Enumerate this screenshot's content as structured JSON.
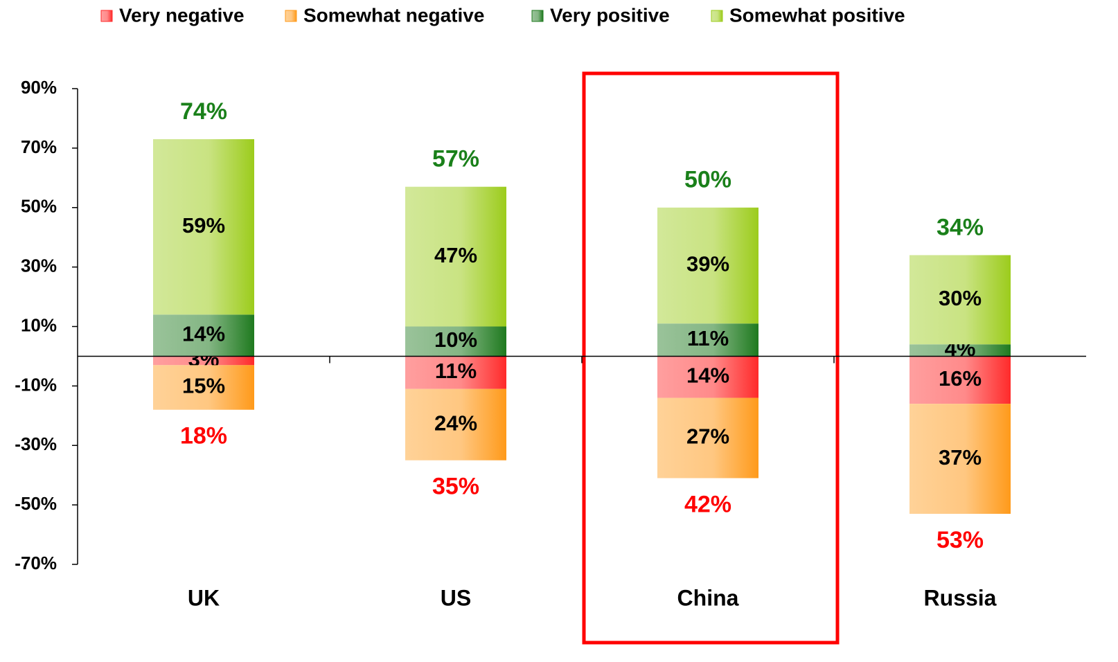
{
  "chart_data": {
    "type": "diverging_stacked_bar",
    "categories": [
      "UK",
      "US",
      "China",
      "Russia"
    ],
    "series": [
      {
        "name": "Very negative",
        "color": "#ff2a2a",
        "values": [
          -3,
          -11,
          -14,
          -16
        ],
        "value_labels": [
          "3%",
          "11%",
          "14%",
          "16%"
        ]
      },
      {
        "name": "Somewhat negative",
        "color": "#ff9a1a",
        "values": [
          -15,
          -24,
          -27,
          -37
        ],
        "value_labels": [
          "15%",
          "24%",
          "27%",
          "37%"
        ]
      },
      {
        "name": "Very positive",
        "color": "#1f7a1f",
        "values": [
          14,
          10,
          11,
          4
        ],
        "value_labels": [
          "14%",
          "10%",
          "11%",
          "4%"
        ]
      },
      {
        "name": "Somewhat positive",
        "color": "#9ccc1c",
        "values": [
          59,
          47,
          39,
          30
        ],
        "value_labels": [
          "59%",
          "47%",
          "39%",
          "30%"
        ]
      }
    ],
    "totals": {
      "positive": {
        "color": "#1a801a",
        "values": [
          74,
          57,
          50,
          34
        ],
        "value_labels": [
          "74%",
          "57%",
          "50%",
          "34%"
        ]
      },
      "negative": {
        "color": "#ff0000",
        "values": [
          -18,
          -35,
          -42,
          -53
        ],
        "value_labels": [
          "18%",
          "35%",
          "42%",
          "53%"
        ]
      }
    },
    "ylim": [
      -70,
      90
    ],
    "yticks": [
      {
        "value": 90,
        "label": "90%"
      },
      {
        "value": 70,
        "label": "70%"
      },
      {
        "value": 50,
        "label": "50%"
      },
      {
        "value": 30,
        "label": "30%"
      },
      {
        "value": 10,
        "label": "10%"
      },
      {
        "value": -10,
        "label": "-10%"
      },
      {
        "value": -30,
        "label": "-30%"
      },
      {
        "value": -50,
        "label": "-50%"
      },
      {
        "value": -70,
        "label": "-70%"
      }
    ],
    "legend": "top",
    "grid": false
  }
}
